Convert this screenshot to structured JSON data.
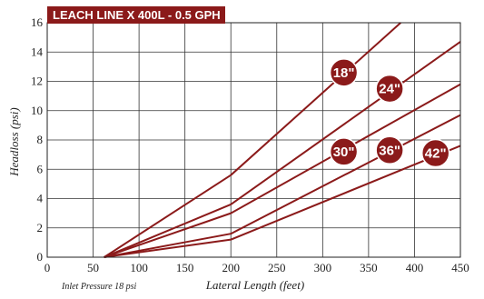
{
  "chart_data": {
    "type": "line",
    "title": "LEACH LINE X 400L - 0.5 GPH",
    "xlabel": "Lateral Length (feet)",
    "ylabel": "Headloss (psi)",
    "note": "Inlet Pressure 18 psi",
    "xlim": [
      0,
      450
    ],
    "ylim": [
      0,
      16
    ],
    "xticks": [
      "0",
      "50",
      "100",
      "150",
      "200",
      "250",
      "300",
      "350",
      "400",
      "450"
    ],
    "yticks": [
      "0",
      "2",
      "4",
      "6",
      "8",
      "10",
      "12",
      "14",
      "16"
    ],
    "grid": true,
    "line_color": "#8b1a1a",
    "series": [
      {
        "name": "18\"",
        "x": [
          62,
          200,
          385
        ],
        "y": [
          0,
          5.6,
          16
        ]
      },
      {
        "name": "24\"",
        "x": [
          62,
          200,
          450
        ],
        "y": [
          0,
          3.6,
          14.7
        ]
      },
      {
        "name": "30\"",
        "x": [
          62,
          200,
          450
        ],
        "y": [
          0,
          3.0,
          11.8
        ]
      },
      {
        "name": "36\"",
        "x": [
          62,
          200,
          450
        ],
        "y": [
          0,
          1.6,
          9.7
        ]
      },
      {
        "name": "42\"",
        "x": [
          62,
          200,
          450
        ],
        "y": [
          0,
          1.2,
          7.6
        ]
      }
    ],
    "labels": [
      {
        "text": "18\"",
        "x": 323,
        "y": 12.6
      },
      {
        "text": "24\"",
        "x": 373,
        "y": 11.5
      },
      {
        "text": "30\"",
        "x": 323,
        "y": 7.2
      },
      {
        "text": "36\"",
        "x": 373,
        "y": 7.3
      },
      {
        "text": "42\"",
        "x": 423,
        "y": 7.1
      }
    ]
  }
}
